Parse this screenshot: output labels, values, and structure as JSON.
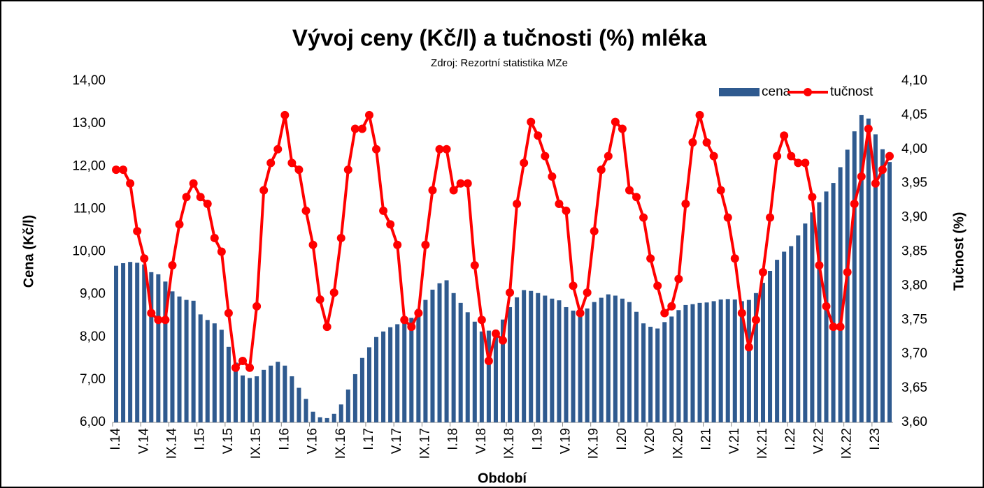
{
  "chart_data": {
    "type": "combo",
    "title": "Vývoj ceny (Kč/l) a tučnosti (%) mléka",
    "subtitle": "Zdroj: Rezortní statistika MZe",
    "x_label": "Období",
    "y_label": "Cena (Kč/l)",
    "y2_label": "Tučnost (%)",
    "legend": "top-right",
    "categories": [
      "I.14",
      null,
      null,
      null,
      "V.14",
      null,
      null,
      null,
      "IX.14",
      null,
      null,
      null,
      "I.15",
      null,
      null,
      null,
      "V.15",
      null,
      null,
      null,
      "IX.15",
      null,
      null,
      null,
      "I.16",
      null,
      null,
      null,
      "V.16",
      null,
      null,
      null,
      "IX.16",
      null,
      null,
      null,
      "I.17",
      null,
      null,
      null,
      "V.17",
      null,
      null,
      null,
      "IX.17",
      null,
      null,
      null,
      "I.18",
      null,
      null,
      null,
      "V.18",
      null,
      null,
      null,
      "IX.18",
      null,
      null,
      null,
      "I.19",
      null,
      null,
      null,
      "V.19",
      null,
      null,
      null,
      "IX.19",
      null,
      null,
      null,
      "I.20",
      null,
      null,
      null,
      "V.20",
      null,
      null,
      null,
      "IX.20",
      null,
      null,
      null,
      "I.21",
      null,
      null,
      null,
      "V.21",
      null,
      null,
      null,
      "IX.21",
      null,
      null,
      null,
      "I.22",
      null,
      null,
      null,
      "V.22",
      null,
      null,
      null,
      "IX.22",
      null,
      null,
      null,
      "I.23",
      null,
      null
    ],
    "series": [
      {
        "name": "cena",
        "type": "bar",
        "color": "#2f5a8f",
        "values": [
          9.67,
          9.73,
          9.76,
          9.74,
          9.7,
          9.52,
          9.47,
          9.3,
          9.07,
          8.95,
          8.87,
          8.85,
          8.53,
          8.4,
          8.32,
          8.17,
          7.77,
          7.4,
          7.1,
          7.04,
          7.08,
          7.23,
          7.33,
          7.42,
          7.33,
          7.08,
          6.81,
          6.55,
          6.25,
          6.12,
          6.1,
          6.2,
          6.42,
          6.77,
          7.13,
          7.51,
          7.76,
          8.0,
          8.13,
          8.23,
          8.3,
          8.37,
          8.45,
          8.66,
          8.87,
          9.11,
          9.26,
          9.33,
          9.03,
          8.8,
          8.58,
          8.36,
          8.13,
          8.15,
          8.17,
          8.41,
          8.7,
          8.93,
          9.1,
          9.08,
          9.03,
          8.97,
          8.9,
          8.86,
          8.7,
          8.62,
          8.63,
          8.67,
          8.82,
          8.92,
          9.0,
          8.97,
          8.9,
          8.82,
          8.59,
          8.32,
          8.24,
          8.2,
          8.35,
          8.48,
          8.63,
          8.75,
          8.77,
          8.8,
          8.81,
          8.84,
          8.88,
          8.89,
          8.88,
          8.84,
          8.87,
          9.03,
          9.27,
          9.55,
          9.81,
          10.0,
          10.13,
          10.38,
          10.66,
          10.92,
          11.16,
          11.41,
          11.61,
          11.98,
          12.39,
          12.82,
          13.2,
          13.12,
          12.75,
          12.4,
          12.1
        ]
      },
      {
        "name": "tučnost",
        "type": "line",
        "axis": "y2",
        "color": "#ff0000",
        "values": [
          3.97,
          3.97,
          3.95,
          3.88,
          3.84,
          3.76,
          3.75,
          3.75,
          3.83,
          3.89,
          3.93,
          3.95,
          3.93,
          3.92,
          3.87,
          3.85,
          3.76,
          3.68,
          3.69,
          3.68,
          3.77,
          3.94,
          3.98,
          4.0,
          4.05,
          3.98,
          3.97,
          3.91,
          3.86,
          3.78,
          3.74,
          3.79,
          3.87,
          3.97,
          4.03,
          4.03,
          4.05,
          4.0,
          3.91,
          3.89,
          3.86,
          3.75,
          3.74,
          3.76,
          3.86,
          3.94,
          4.0,
          4.0,
          3.94,
          3.95,
          3.95,
          3.83,
          3.75,
          3.69,
          3.73,
          3.72,
          3.79,
          3.92,
          3.98,
          4.04,
          4.02,
          3.99,
          3.96,
          3.92,
          3.91,
          3.8,
          3.76,
          3.79,
          3.88,
          3.97,
          3.99,
          4.04,
          4.03,
          3.94,
          3.93,
          3.9,
          3.84,
          3.8,
          3.76,
          3.77,
          3.81,
          3.92,
          4.01,
          4.05,
          4.01,
          3.99,
          3.94,
          3.9,
          3.84,
          3.76,
          3.71,
          3.75,
          3.82,
          3.9,
          3.99,
          4.02,
          3.99,
          3.98,
          3.98,
          3.93,
          3.83,
          3.77,
          3.74,
          3.74,
          3.82,
          3.92,
          3.96,
          4.03,
          3.95,
          3.97,
          3.99
        ]
      }
    ],
    "ylim": [
      6,
      14
    ],
    "yticks": [
      {
        "value": 6,
        "label": "6,00"
      },
      {
        "value": 7,
        "label": "7,00"
      },
      {
        "value": 8,
        "label": "8,00"
      },
      {
        "value": 9,
        "label": "9,00"
      },
      {
        "value": 10,
        "label": "10,00"
      },
      {
        "value": 11,
        "label": "11,00"
      },
      {
        "value": 12,
        "label": "12,00"
      },
      {
        "value": 13,
        "label": "13,00"
      },
      {
        "value": 14,
        "label": "14,00"
      }
    ],
    "y2lim": [
      3.6,
      4.1
    ],
    "y2ticks": [
      {
        "value": 3.6,
        "label": "3,60"
      },
      {
        "value": 3.65,
        "label": "3,65"
      },
      {
        "value": 3.7,
        "label": "3,70"
      },
      {
        "value": 3.75,
        "label": "3,75"
      },
      {
        "value": 3.8,
        "label": "3,80"
      },
      {
        "value": 3.85,
        "label": "3,85"
      },
      {
        "value": 3.9,
        "label": "3,90"
      },
      {
        "value": 3.95,
        "label": "3,95"
      },
      {
        "value": 4.0,
        "label": "4,00"
      },
      {
        "value": 4.05,
        "label": "4,05"
      },
      {
        "value": 4.1,
        "label": "4,10"
      }
    ]
  }
}
